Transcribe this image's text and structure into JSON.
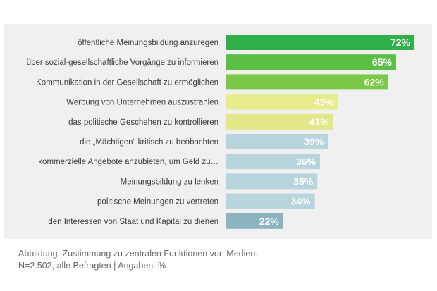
{
  "caption": "Abbildung: Zustimmung zu zentralen Funktionen von Medien. N=2.502, alle Befragten | Angaben: %",
  "chart_data": {
    "type": "bar",
    "orientation": "horizontal",
    "categories": [
      "öffentliche Meinungsbildung anzuregen",
      "über sozial-gesellschaftliche Vorgänge zu informieren",
      "Kommunikation in der Gesellschaft zu ermöglichen",
      "Werbung von Unternehmen auszustrahlen",
      "das politische Geschehen zu kontrollieren",
      "die „Mächtigen“ kritisch zu beobachten",
      "kommerzielle Angebote anzubieten, um Geld zu…",
      "Meinungsbildung zu lenken",
      "politische Meinungen zu vertreten",
      "den Interessen von Staat und Kapital zu dienen"
    ],
    "values": [
      72,
      65,
      62,
      43,
      41,
      39,
      36,
      35,
      34,
      22
    ],
    "value_labels": [
      "72%",
      "65%",
      "62%",
      "43%",
      "41%",
      "39%",
      "36%",
      "35%",
      "34%",
      "22%"
    ],
    "colors": [
      "#2fb04a",
      "#5bbf45",
      "#7cc94a",
      "#e7ec8c",
      "#e2e888",
      "#b8d4dc",
      "#b8d4dc",
      "#b8d4dc",
      "#b8d4dc",
      "#8bb3c0"
    ],
    "xlim": [
      0,
      72
    ],
    "grid": false,
    "legend": "none"
  }
}
